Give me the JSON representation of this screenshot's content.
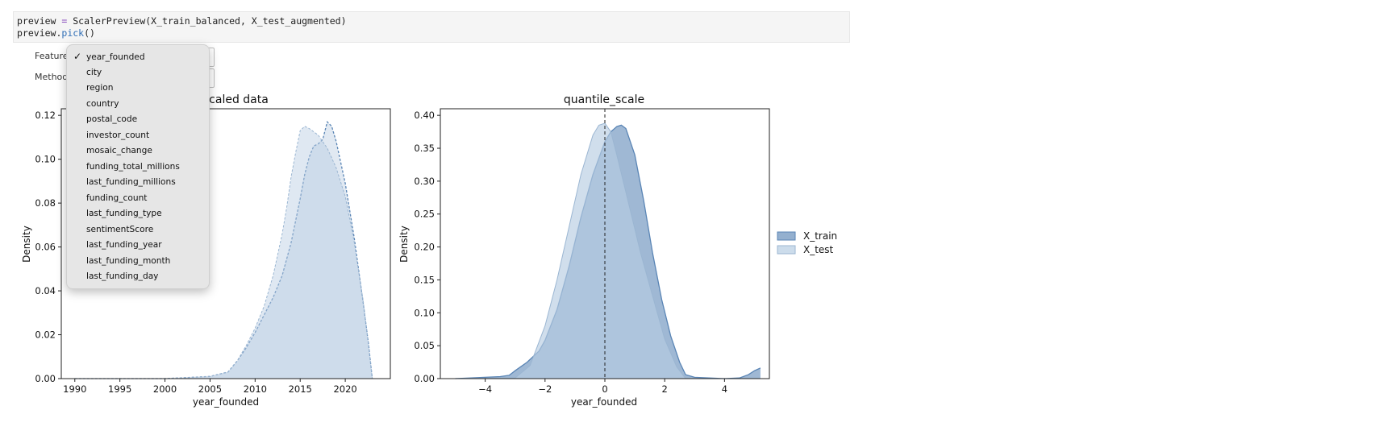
{
  "code_cell": {
    "line1": {
      "pre": "preview ",
      "op": "=",
      "post": " ScalerPreview(X_train_balanced, X_test_augmented)"
    },
    "line2": {
      "pre": "preview.",
      "fn": "pick",
      "post": "()"
    }
  },
  "widgets": {
    "feature_label": "Feature",
    "method_label": "Method",
    "caret": "▾"
  },
  "dropdown": {
    "selected": "year_founded",
    "check": "✓",
    "options": [
      "year_founded",
      "city",
      "region",
      "country",
      "postal_code",
      "investor_count",
      "mosaic_change",
      "funding_total_millions",
      "last_funding_millions",
      "funding_count",
      "last_funding_type",
      "sentimentScore",
      "last_funding_year",
      "last_funding_month",
      "last_funding_day"
    ]
  },
  "colors": {
    "train": "#5a85b5",
    "test": "#b7cde2",
    "background": "#ffffff"
  },
  "chart_data": [
    {
      "type": "area",
      "title": "caled data",
      "xlabel": "year_founded",
      "ylabel": "Density",
      "xlim": [
        1988.5,
        2025
      ],
      "ylim": [
        0,
        0.123
      ],
      "xticks": [
        1990,
        1995,
        2000,
        2005,
        2010,
        2015,
        2020
      ],
      "yticks": [
        0.0,
        0.02,
        0.04,
        0.06,
        0.08,
        0.1,
        0.12
      ],
      "ytick_labels": [
        "0.00",
        "0.02",
        "0.04",
        "0.06",
        "0.08",
        "0.10",
        "0.12"
      ],
      "series": [
        {
          "name": "X_train",
          "x": [
            1990,
            1995,
            2000,
            2005,
            2007,
            2008,
            2009,
            2010,
            2011,
            2012,
            2013,
            2014,
            2015,
            2015.5,
            2016,
            2016.5,
            2017,
            2017.5,
            2018,
            2018.5,
            2019,
            2020,
            2021,
            2022,
            2022.6,
            2023
          ],
          "y": [
            0,
            0,
            0,
            0.001,
            0.003,
            0.008,
            0.014,
            0.021,
            0.029,
            0.037,
            0.047,
            0.062,
            0.082,
            0.093,
            0.101,
            0.106,
            0.107,
            0.109,
            0.117,
            0.115,
            0.108,
            0.089,
            0.064,
            0.034,
            0.015,
            0
          ]
        },
        {
          "name": "X_test",
          "x": [
            1990,
            1995,
            2000,
            2005,
            2007,
            2008,
            2009,
            2010,
            2011,
            2012,
            2013,
            2013.5,
            2014,
            2014.5,
            2015,
            2015.5,
            2016,
            2017,
            2018,
            2019,
            2020,
            2021,
            2022,
            2022.6,
            2023
          ],
          "y": [
            0,
            0,
            0,
            0.001,
            0.003,
            0.008,
            0.015,
            0.023,
            0.033,
            0.047,
            0.066,
            0.078,
            0.092,
            0.103,
            0.113,
            0.115,
            0.114,
            0.111,
            0.105,
            0.096,
            0.083,
            0.062,
            0.035,
            0.015,
            0
          ]
        }
      ]
    },
    {
      "type": "area",
      "title": "quantile_scale",
      "xlabel": "year_founded",
      "ylabel": "Density",
      "xlim": [
        -5.5,
        5.5
      ],
      "ylim": [
        0,
        0.41
      ],
      "xticks": [
        -4,
        -2,
        0,
        2,
        4
      ],
      "xtick_labels": [
        "−4",
        "−2",
        "0",
        "2",
        "4"
      ],
      "yticks": [
        0.0,
        0.05,
        0.1,
        0.15,
        0.2,
        0.25,
        0.3,
        0.35,
        0.4
      ],
      "ytick_labels": [
        "0.00",
        "0.05",
        "0.10",
        "0.15",
        "0.20",
        "0.25",
        "0.30",
        "0.35",
        "0.40"
      ],
      "vline_x": 0,
      "legend": [
        "X_train",
        "X_test"
      ],
      "legend_placement": "right, outside",
      "series": [
        {
          "name": "X_train",
          "x": [
            -5.0,
            -3.5,
            -3.2,
            -3.0,
            -2.6,
            -2.2,
            -2.0,
            -1.6,
            -1.2,
            -0.8,
            -0.4,
            0,
            0.2,
            0.4,
            0.55,
            0.7,
            1.0,
            1.3,
            1.6,
            1.9,
            2.2,
            2.5,
            2.7,
            3.0,
            4.0,
            4.5,
            4.8,
            5.0,
            5.2
          ],
          "y": [
            0,
            0.003,
            0.005,
            0.012,
            0.025,
            0.042,
            0.058,
            0.105,
            0.17,
            0.245,
            0.31,
            0.36,
            0.375,
            0.383,
            0.385,
            0.38,
            0.34,
            0.27,
            0.19,
            0.12,
            0.065,
            0.025,
            0.006,
            0.002,
            0,
            0.001,
            0.006,
            0.012,
            0.016
          ]
        },
        {
          "name": "X_test",
          "x": [
            -5.0,
            -3.0,
            -2.5,
            -2.0,
            -1.6,
            -1.2,
            -0.8,
            -0.4,
            -0.2,
            0,
            0.2,
            0.4,
            0.8,
            1.2,
            1.6,
            2.0,
            2.4,
            2.7
          ],
          "y": [
            0,
            0.001,
            0.02,
            0.08,
            0.15,
            0.23,
            0.31,
            0.37,
            0.385,
            0.388,
            0.375,
            0.34,
            0.265,
            0.19,
            0.125,
            0.06,
            0.018,
            0
          ]
        }
      ]
    }
  ]
}
